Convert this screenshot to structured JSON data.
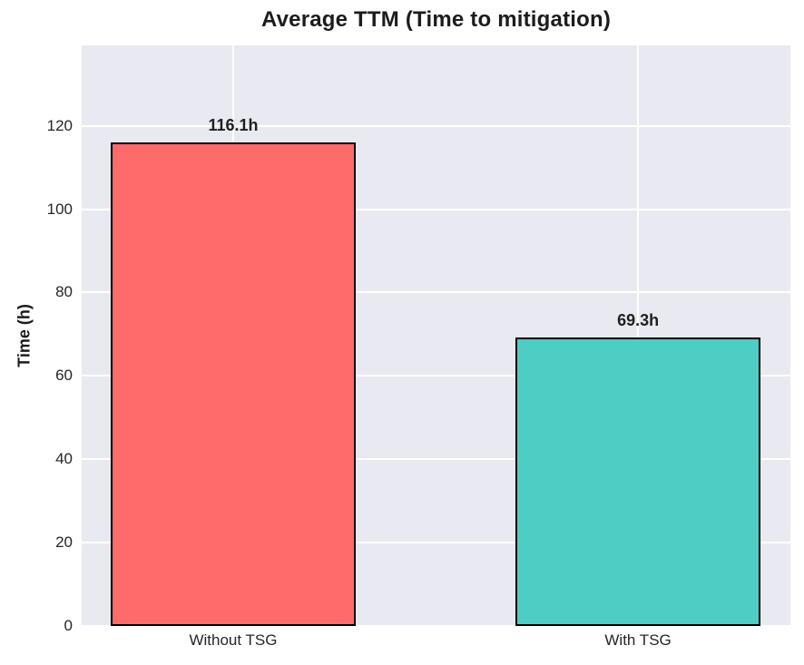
{
  "chart_data": {
    "type": "bar",
    "title": "Average TTM (Time to mitigation)",
    "ylabel": "Time (h)",
    "categories": [
      "Without TSG",
      "With TSG"
    ],
    "values": [
      116.1,
      69.3
    ],
    "value_labels": [
      "116.1h",
      "69.3h"
    ],
    "bar_colors": [
      "#FF6B6B",
      "#4ECDC4"
    ],
    "bar_edge_color": "#000000",
    "yticks": [
      0,
      20,
      40,
      60,
      80,
      100,
      120
    ],
    "ylim": [
      0,
      139.3
    ],
    "grid": true,
    "plot_background": "#E9E9F1",
    "grid_color": "#FFFFFF",
    "text_color": "#262626"
  }
}
